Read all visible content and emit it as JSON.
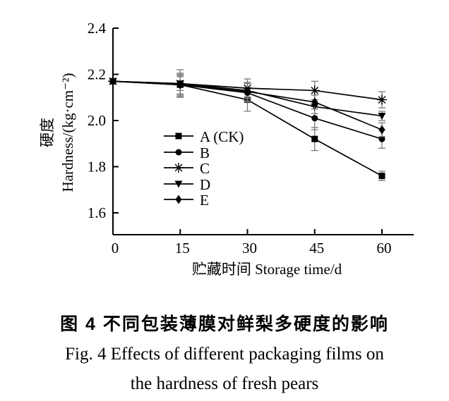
{
  "figure": {
    "caption_zh": "图 4  不同包装薄膜对鲜梨多硬度的影响",
    "caption_en_line1": "Fig. 4  Effects of different packaging films on",
    "caption_en_line2": "the hardness of fresh pears"
  },
  "chart_data": {
    "type": "line",
    "x": [
      0,
      15,
      30,
      45,
      60
    ],
    "x_tick_labels": [
      "0",
      "15",
      "30",
      "45",
      "60"
    ],
    "y_tick_labels": [
      "1.6",
      "1.8",
      "2.0",
      "2.2",
      "2.4"
    ],
    "xlim": [
      0,
      67
    ],
    "ylim": [
      1.5,
      2.4
    ],
    "xlabel": "贮藏时间 Storage time/d",
    "ylabel_zh": "硬度",
    "ylabel_en": "Hardness/(kg·cm⁻²)",
    "grid": false,
    "legend_position": "inside-center-left",
    "line_color": "#000000",
    "error_bar_color": "#7a7a7a",
    "series": [
      {
        "name": "A (CK)",
        "marker": "square",
        "values": [
          2.17,
          2.155,
          2.09,
          1.92,
          1.76
        ],
        "errors": [
          0,
          0.05,
          0.05,
          0.05,
          0.02
        ]
      },
      {
        "name": "B",
        "marker": "circle",
        "values": [
          2.17,
          2.155,
          2.12,
          2.01,
          1.92
        ],
        "errors": [
          0,
          0.04,
          0.04,
          0.05,
          0.04
        ]
      },
      {
        "name": "C",
        "marker": "asterisk",
        "values": [
          2.17,
          2.16,
          2.14,
          2.13,
          2.09
        ],
        "errors": [
          0,
          0.06,
          0.04,
          0.04,
          0.035
        ]
      },
      {
        "name": "D",
        "marker": "triangle-down",
        "values": [
          2.17,
          2.16,
          2.13,
          2.06,
          2.02
        ],
        "errors": [
          0,
          0.03,
          0.035,
          0.03,
          0.02
        ]
      },
      {
        "name": "E",
        "marker": "diamond",
        "values": [
          2.17,
          2.155,
          2.125,
          2.08,
          1.96
        ],
        "errors": [
          0,
          0.045,
          0.04,
          0.03,
          0.03
        ]
      }
    ]
  }
}
